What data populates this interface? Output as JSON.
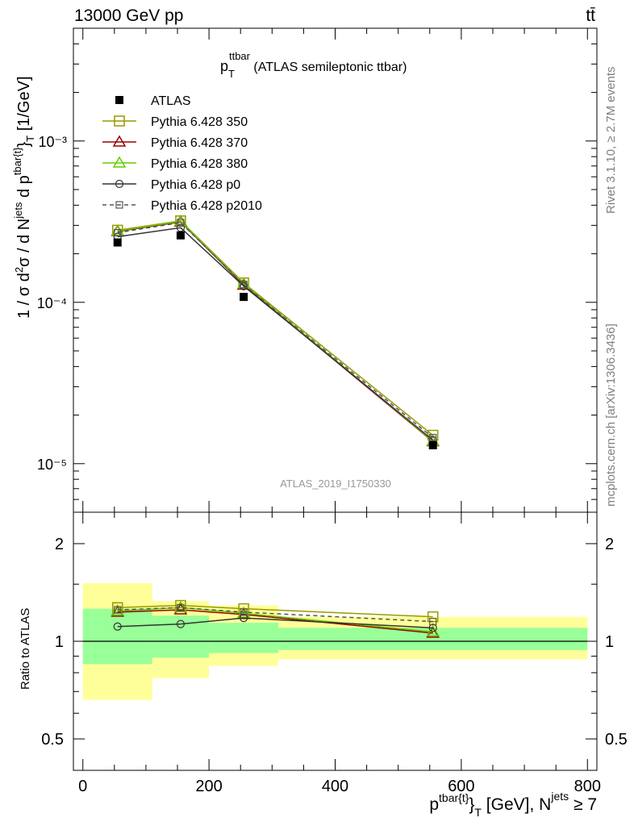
{
  "header": {
    "left": "13000 GeV pp",
    "right": "tt̄"
  },
  "side_labels": {
    "rivet": "Rivet 3.1.10, ≥ 2.7M events",
    "source": "mcplots.cern.ch [arXiv:1306.3436]"
  },
  "chart_data": [
    {
      "type": "line",
      "title_main": "p",
      "title_sup": "ttbar",
      "title_sub": "T",
      "title_rest": " (ATLAS semileptonic ttbar)",
      "watermark": "ATLAS_2019_I1750330",
      "ylabel": "1 / σ d²σ / d Nʲᵉᵗˢ d pᵀ [1/GeV]",
      "y_scale": "log",
      "ylim": [
        5e-06,
        0.005
      ],
      "xlim": [
        -15,
        815
      ],
      "x": [
        55,
        155,
        255,
        555
      ],
      "x_edges": [
        0,
        110,
        200,
        310,
        800
      ],
      "legend_position": "top-left",
      "data": {
        "name": "ATLAS",
        "values": [
          0.000235,
          0.00026,
          0.000108,
          1.3e-05
        ]
      },
      "series": [
        {
          "name": "Pythia 6.428 350",
          "color": "#999900",
          "marker": "open-square",
          "dash": "solid",
          "values": [
            0.00028,
            0.00032,
            0.000132,
            1.5e-05
          ]
        },
        {
          "name": "Pythia 6.428 370",
          "color": "#990000",
          "marker": "open-triangle",
          "dash": "solid",
          "values": [
            0.000275,
            0.000315,
            0.000128,
            1.37e-05
          ]
        },
        {
          "name": "Pythia 6.428 380",
          "color": "#66cc00",
          "marker": "open-triangle",
          "dash": "solid",
          "values": [
            0.000277,
            0.000318,
            0.00013,
            1.38e-05
          ]
        },
        {
          "name": "Pythia 6.428 p0",
          "color": "#333333",
          "marker": "open-circle",
          "dash": "solid",
          "values": [
            0.000255,
            0.00029,
            0.000126,
            1.4e-05
          ]
        },
        {
          "name": "Pythia 6.428 p2010",
          "color": "#555555",
          "marker": "open-square-small",
          "dash": "dashed",
          "values": [
            0.00027,
            0.000312,
            0.000129,
            1.45e-05
          ]
        }
      ],
      "y_tick_labels": [
        "10⁻⁵",
        "10⁻⁴",
        "10⁻³"
      ]
    },
    {
      "type": "line",
      "ylabel": "Ratio to ATLAS",
      "xlabel": "pᵀ [GeV], Nʲᵉᵗˢ ≥ 7",
      "xlabel_main": "p",
      "xlabel_sup": "tbar{t}",
      "xlabel_sub": "T",
      "xlabel_rest": " [GeV], N",
      "xlabel_sup2": "jets",
      "xlabel_tail": " ≥ 7",
      "y_scale": "log",
      "ylim": [
        0.4,
        2.5
      ],
      "xlim": [
        -15,
        815
      ],
      "x": [
        55,
        155,
        255,
        555
      ],
      "x_ticks": [
        0,
        200,
        400,
        600,
        800
      ],
      "x_tick_labels": [
        "0",
        "200",
        "400",
        "600",
        "800"
      ],
      "y_ticks": [
        0.5,
        1,
        2
      ],
      "y_tick_labels": [
        "0.5",
        "1",
        "2"
      ],
      "bands": {
        "edges": [
          0,
          110,
          200,
          310,
          800
        ],
        "green_lo": [
          0.85,
          0.89,
          0.92,
          0.94
        ],
        "green_hi": [
          1.26,
          1.2,
          1.14,
          1.1
        ],
        "yellow_lo": [
          0.66,
          0.77,
          0.84,
          0.88
        ],
        "yellow_hi": [
          1.51,
          1.33,
          1.29,
          1.19
        ],
        "green_color": "#99ff99",
        "yellow_color": "#ffff99"
      },
      "series": [
        {
          "name": "Pythia 6.428 350",
          "values": [
            1.27,
            1.29,
            1.26,
            1.19
          ]
        },
        {
          "name": "Pythia 6.428 370",
          "values": [
            1.23,
            1.25,
            1.21,
            1.06
          ]
        },
        {
          "name": "Pythia 6.428 380",
          "values": [
            1.24,
            1.27,
            1.22,
            1.07
          ]
        },
        {
          "name": "Pythia 6.428 p0",
          "values": [
            1.11,
            1.13,
            1.18,
            1.1
          ]
        },
        {
          "name": "Pythia 6.428 p2010",
          "values": [
            1.25,
            1.27,
            1.23,
            1.15
          ]
        }
      ]
    }
  ]
}
